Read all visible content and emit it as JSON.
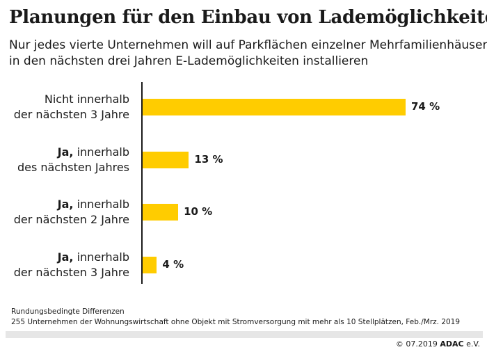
{
  "title": "Planungen für den Einbau von Lademöglichkeiten",
  "subtitle": [
    "Nur jedes vierte Unternehmen will auf Parkflächen einzelner Mehrfamilienhäuser",
    "in den nächsten drei Jahren E-Lademöglichkeiten installieren"
  ],
  "chart_data": {
    "type": "bar",
    "orientation": "horizontal",
    "title": "Planungen für den Einbau von Lademöglichkeiten",
    "categories": [
      "Nicht innerhalb der nächsten 3 Jahre",
      "Ja, innerhalb des nächsten Jahres",
      "Ja, innerhalb der nächsten 2 Jahre",
      "Ja, innerhalb der nächsten 3 Jahre"
    ],
    "category_lines": [
      {
        "bold": "",
        "rest": "Nicht innerhalb",
        "line2": "der nächsten 3 Jahre"
      },
      {
        "bold": "Ja,",
        "rest": " innerhalb",
        "line2": "des nächsten Jahres"
      },
      {
        "bold": "Ja,",
        "rest": " innerhalb",
        "line2": "der nächsten 2 Jahre"
      },
      {
        "bold": "Ja,",
        "rest": " innerhalb",
        "line2": "der nächsten 3 Jahre"
      }
    ],
    "values": [
      74,
      13,
      10,
      4
    ],
    "value_labels": [
      "74 %",
      "13 %",
      "10 %",
      "4 %"
    ],
    "unit": "%",
    "xlim": [
      0,
      100
    ],
    "bar_color": "#ffcc00",
    "grid": false,
    "legend": "none"
  },
  "notes": [
    "Rundungsbedingte Differenzen",
    "255 Unternehmen der Wohnungswirtschaft ohne Objekt mit Stromversorgung mit mehr als 10 Stellplätzen, Feb./Mrz. 2019"
  ],
  "footer": {
    "copyright": "© 07.2019",
    "brand": "ADAC",
    "suffix": " e.V."
  }
}
